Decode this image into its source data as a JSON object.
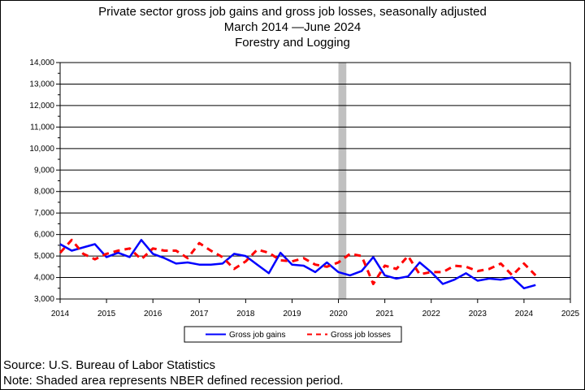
{
  "chart_data": {
    "type": "line",
    "title": "Private sector gross job gains and gross job losses, seasonally adjusted",
    "subtitle_period": "March 2014 —June 2024",
    "subtitle_industry": "Forestry and Logging",
    "xlim": [
      2014,
      2025
    ],
    "ylim": [
      3000,
      14000
    ],
    "x_ticks": [
      "2014",
      "2015",
      "2016",
      "2017",
      "2018",
      "2019",
      "2020",
      "2021",
      "2022",
      "2023",
      "2024",
      "2025"
    ],
    "y_ticks": [
      "3,000",
      "4,000",
      "5,000",
      "6,000",
      "7,000",
      "8,000",
      "9,000",
      "10,000",
      "11,000",
      "12,000",
      "13,000",
      "14,000"
    ],
    "grid": "horizontal",
    "recession_shading": [
      2020.0,
      2020.17
    ],
    "recession_color": "#c0c0c0",
    "legend_placement": "bottom-center",
    "series": [
      {
        "name": "Gross job gains",
        "color": "#0000ff",
        "style": "solid",
        "x": [
          2014.0,
          2014.25,
          2014.5,
          2014.75,
          2015.0,
          2015.25,
          2015.5,
          2015.75,
          2016.0,
          2016.25,
          2016.5,
          2016.75,
          2017.0,
          2017.25,
          2017.5,
          2017.75,
          2018.0,
          2018.25,
          2018.5,
          2018.75,
          2019.0,
          2019.25,
          2019.5,
          2019.75,
          2020.0,
          2020.25,
          2020.5,
          2020.75,
          2021.0,
          2021.25,
          2021.5,
          2021.75,
          2022.0,
          2022.25,
          2022.5,
          2022.75,
          2023.0,
          2023.25,
          2023.5,
          2023.75,
          2024.0,
          2024.25
        ],
        "values": [
          5550,
          5250,
          5400,
          5550,
          4950,
          5150,
          4950,
          5750,
          5100,
          4900,
          4650,
          4700,
          4600,
          4600,
          4650,
          5100,
          5000,
          4600,
          4200,
          5150,
          4600,
          4550,
          4250,
          4700,
          4250,
          4100,
          4300,
          4950,
          4100,
          3950,
          4050,
          4700,
          4250,
          3700,
          3900,
          4200,
          3850,
          3950,
          3900,
          4000,
          3500,
          3650
        ]
      },
      {
        "name": "Gross job losses",
        "color": "#ff0000",
        "style": "dashed",
        "x": [
          2014.0,
          2014.25,
          2014.5,
          2014.75,
          2015.0,
          2015.25,
          2015.5,
          2015.75,
          2016.0,
          2016.25,
          2016.5,
          2016.75,
          2017.0,
          2017.25,
          2017.5,
          2017.75,
          2018.0,
          2018.25,
          2018.5,
          2018.75,
          2019.0,
          2019.25,
          2019.5,
          2019.75,
          2020.0,
          2020.25,
          2020.5,
          2020.75,
          2021.0,
          2021.25,
          2021.5,
          2021.75,
          2022.0,
          2022.25,
          2022.5,
          2022.75,
          2023.0,
          2023.25,
          2023.5,
          2023.75,
          2024.0,
          2024.25
        ],
        "values": [
          5150,
          5750,
          5100,
          4850,
          5100,
          5250,
          5350,
          4850,
          5350,
          5250,
          5250,
          4900,
          5600,
          5250,
          4950,
          4400,
          4750,
          5300,
          5150,
          4800,
          4750,
          4900,
          4600,
          4500,
          4700,
          5100,
          5000,
          3700,
          4550,
          4400,
          5000,
          4150,
          4250,
          4250,
          4550,
          4500,
          4300,
          4400,
          4650,
          4100,
          4650,
          4100
        ]
      }
    ]
  },
  "footer": {
    "source": "Source: U.S. Bureau of Labor Statistics",
    "note": "Note: Shaded area represents NBER defined recession period."
  }
}
